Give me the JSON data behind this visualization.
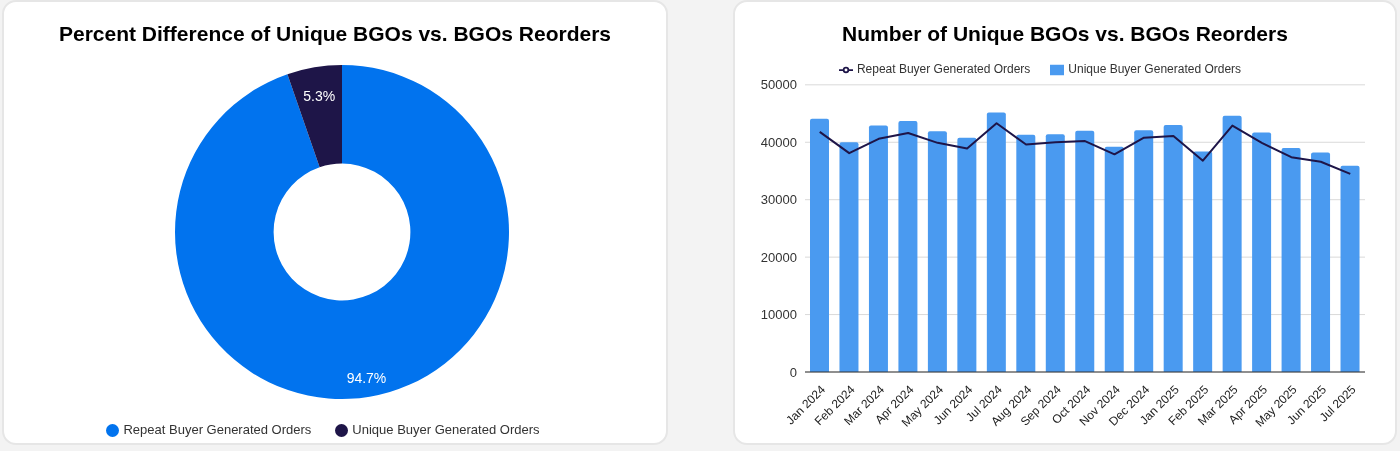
{
  "chart_data": [
    {
      "type": "donut",
      "title": "Percent Difference of Unique BGOs vs. BGOs Reorders",
      "categories": [
        "Repeat Buyer Generated Orders",
        "Unique Buyer Generated Orders"
      ],
      "values": [
        94.7,
        5.3
      ],
      "colors": [
        "#0173ee",
        "#1e1548"
      ],
      "value_labels": [
        "94.7%",
        "5.3%"
      ],
      "legend": "bottom"
    },
    {
      "type": "bar",
      "title": "Number of Unique BGOs vs. BGOs Reorders",
      "categories": [
        "Jan 2024",
        "Feb 2024",
        "Mar 2024",
        "Apr 2024",
        "May 2024",
        "Jun 2024",
        "Jul 2024",
        "Aug 2024",
        "Sep 2024",
        "Oct 2024",
        "Nov 2024",
        "Dec 2024",
        "Jan 2025",
        "Feb 2025",
        "Mar 2025",
        "Apr 2025",
        "May 2025",
        "Jun 2025",
        "Jul 2025"
      ],
      "series": [
        {
          "name": "Unique Buyer Generated Orders",
          "type": "bar",
          "color": "#4a9af0",
          "values": [
            44100,
            40000,
            42900,
            43700,
            41900,
            40800,
            45200,
            41300,
            41400,
            42000,
            39200,
            42100,
            43000,
            38400,
            44600,
            41700,
            39000,
            38200,
            35900
          ]
        },
        {
          "name": "Repeat Buyer Generated Orders",
          "type": "line",
          "color": "#1e1548",
          "values": [
            41800,
            38100,
            40600,
            41600,
            39900,
            38900,
            43300,
            39600,
            40000,
            40200,
            37900,
            40800,
            41100,
            36800,
            42900,
            39900,
            37400,
            36600,
            34500
          ]
        }
      ],
      "ylim": [
        0,
        50000
      ],
      "yticks": [
        0,
        10000,
        20000,
        30000,
        40000,
        50000
      ],
      "grid": "y",
      "legend": "top",
      "marker": "none"
    }
  ]
}
